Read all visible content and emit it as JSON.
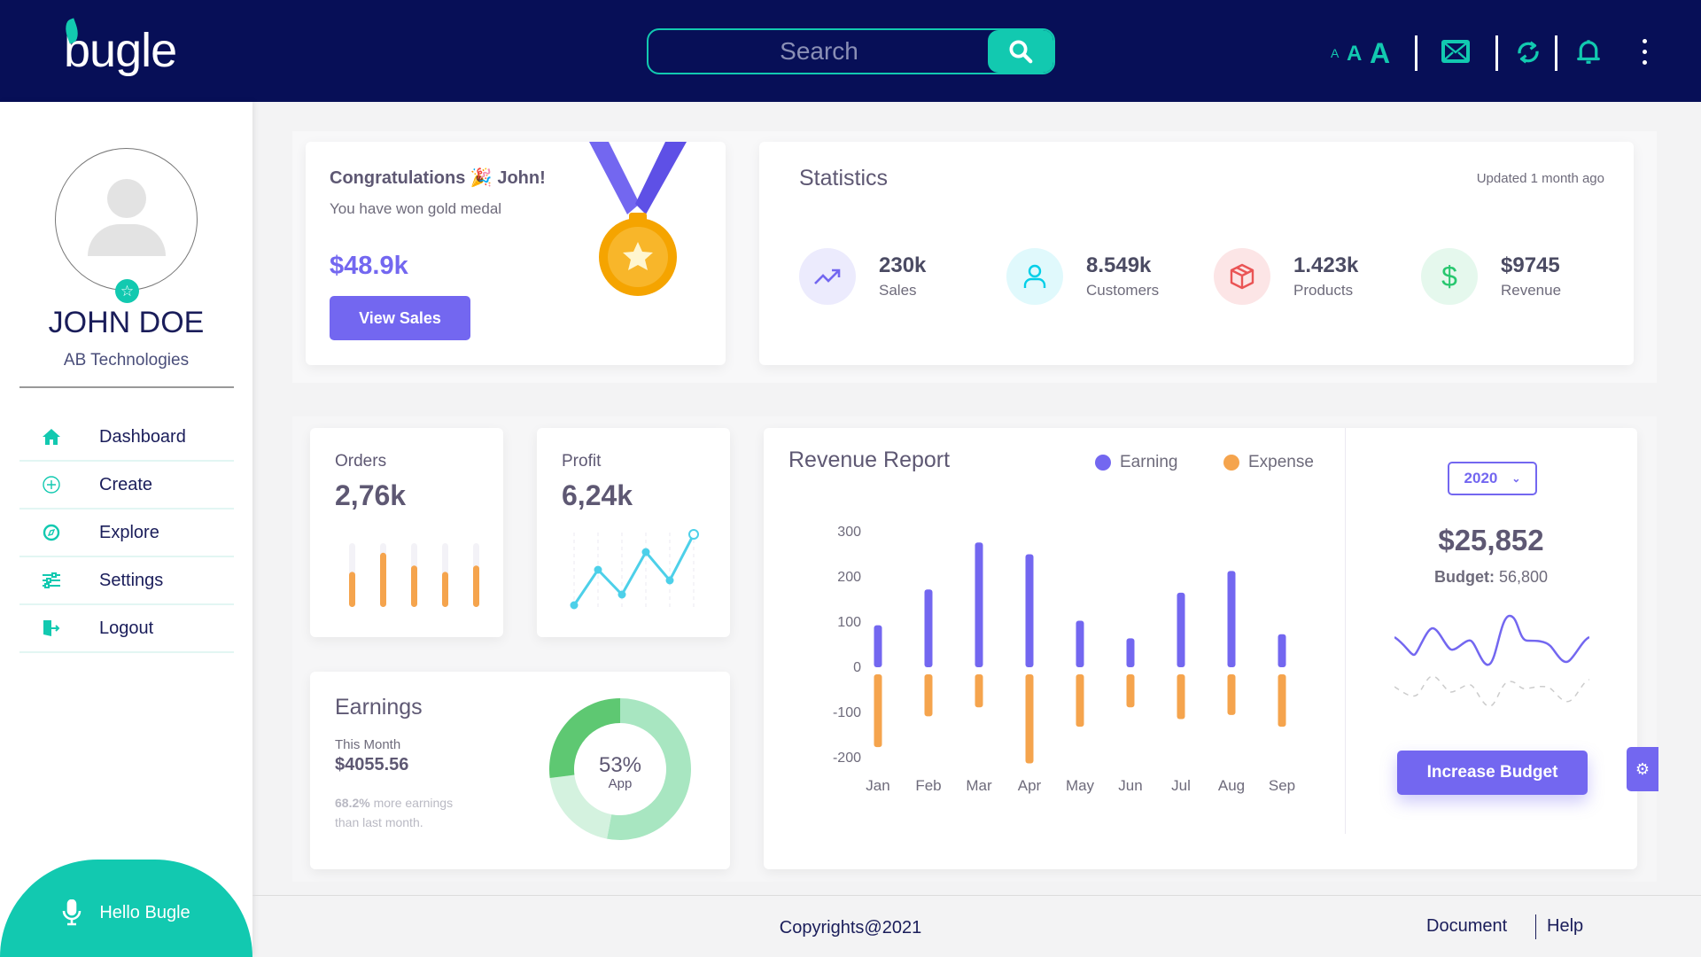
{
  "header": {
    "logo": "bugle",
    "search_placeholder": "Search",
    "font_sizes": [
      "A",
      "A",
      "A"
    ],
    "icons": [
      "search-icon",
      "mail-icon",
      "refresh-icon",
      "bell-icon",
      "more-vertical-icon"
    ]
  },
  "sidebar": {
    "name": "JOHN DOE",
    "company": "AB Technologies",
    "items": [
      {
        "label": "Dashboard",
        "icon": "home-icon"
      },
      {
        "label": "Create",
        "icon": "plus-circle-icon"
      },
      {
        "label": "Explore",
        "icon": "compass-icon"
      },
      {
        "label": "Settings",
        "icon": "sliders-icon"
      },
      {
        "label": "Logout",
        "icon": "logout-icon"
      }
    ],
    "assistant": "Hello Bugle"
  },
  "congrats": {
    "title": "Congratulations 🎉 John!",
    "subtitle": "You have won gold medal",
    "amount": "$48.9k",
    "button": "View Sales"
  },
  "statistics": {
    "title": "Statistics",
    "updated": "Updated 1 month ago",
    "items": [
      {
        "value": "230k",
        "label": "Sales"
      },
      {
        "value": "8.549k",
        "label": "Customers"
      },
      {
        "value": "1.423k",
        "label": "Products"
      },
      {
        "value": "$9745",
        "label": "Revenue"
      }
    ]
  },
  "orders": {
    "title": "Orders",
    "value": "2,76k",
    "bars": [
      0.55,
      0.85,
      0.65,
      0.55,
      0.65
    ]
  },
  "profit": {
    "title": "Profit",
    "value": "6,24k",
    "points": [
      0,
      0.5,
      0.15,
      0.75,
      0.35,
      1
    ]
  },
  "earnings": {
    "title": "Earnings",
    "period": "This Month",
    "amount": "$4055.56",
    "pct": "68.2%",
    "note": "more earnings",
    "note2": "than last month.",
    "donut_pct": "53%",
    "donut_label": "App",
    "segments": [
      53,
      20,
      27
    ]
  },
  "revenue": {
    "year": "2020",
    "total": "$25,852",
    "budget_label": "Budget:",
    "budget_value": "56,800",
    "button": "Increase Budget",
    "colors": {
      "earning": "#7367f0",
      "expense": "#f5a44d"
    }
  },
  "chart_data": {
    "type": "bar",
    "title": "Revenue Report",
    "categories": [
      "Jan",
      "Feb",
      "Mar",
      "Apr",
      "May",
      "Jun",
      "Jul",
      "Aug",
      "Sep"
    ],
    "series": [
      {
        "name": "Earning",
        "values": [
          93,
          172,
          276,
          250,
          103,
          64,
          165,
          213,
          73
        ]
      },
      {
        "name": "Expense",
        "values": [
          -161,
          -93,
          -73,
          -197,
          -116,
          -73,
          -99,
          -90,
          -116
        ]
      }
    ],
    "yticks": [
      300,
      200,
      100,
      0,
      -100,
      -200
    ],
    "ylim": [
      -200,
      300
    ],
    "legend": "top-right",
    "grid": false
  },
  "footer": {
    "copyright": "Copyrights@2021",
    "links": [
      "Document",
      "Help"
    ]
  }
}
